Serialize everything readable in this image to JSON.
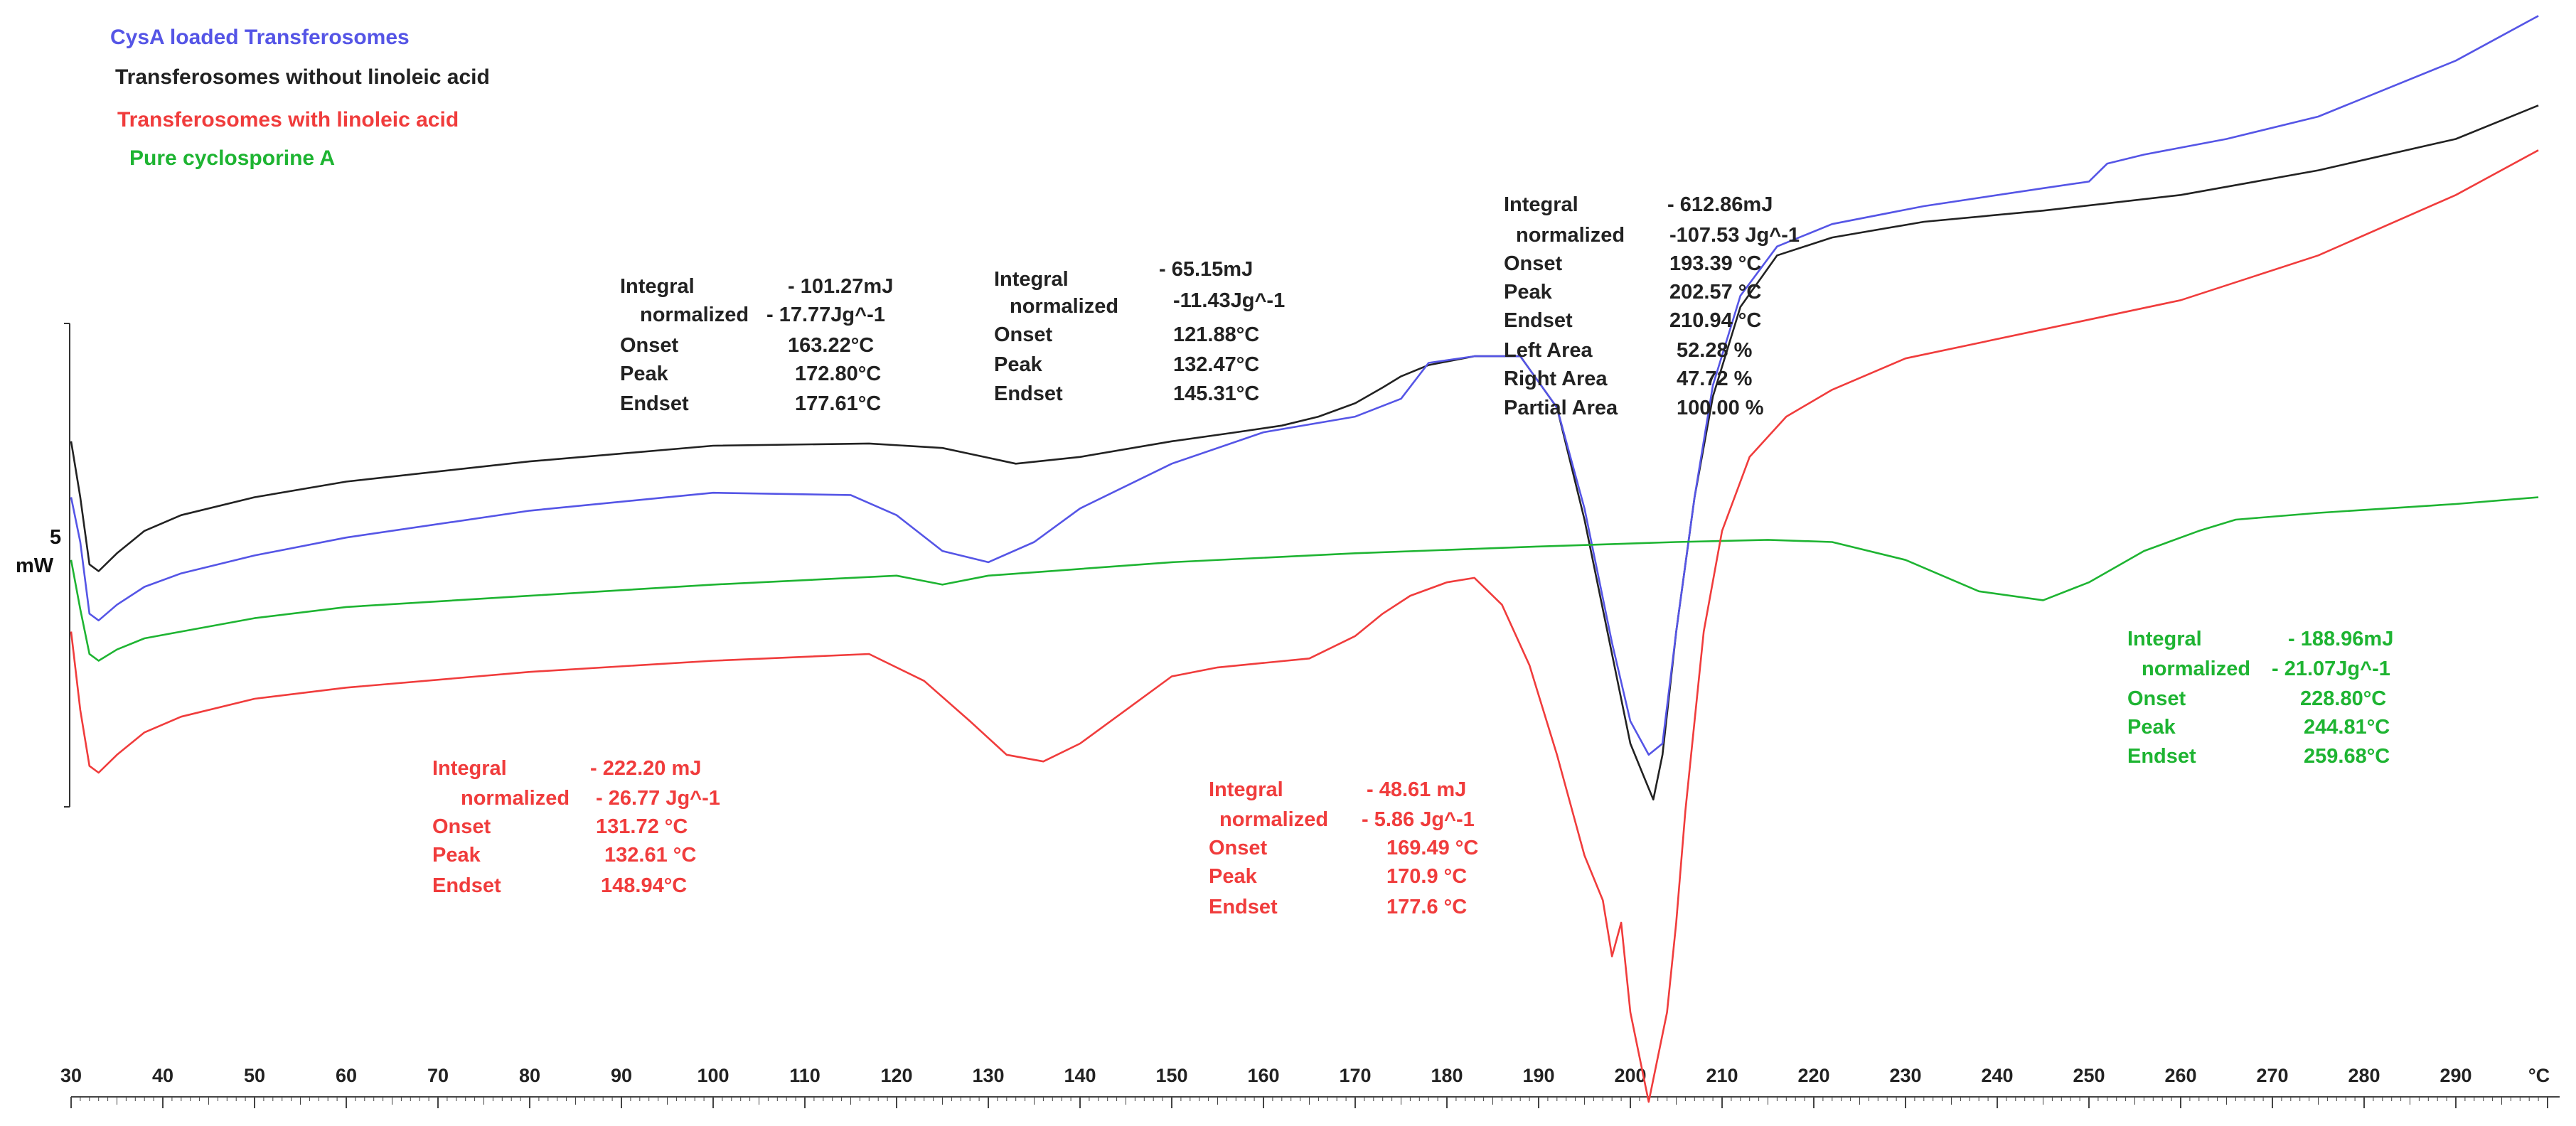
{
  "chart_data": {
    "type": "line",
    "xlabel": "°C",
    "xlim": [
      30,
      300
    ],
    "x_ticks": [
      "30",
      "40",
      "50",
      "60",
      "70",
      "80",
      "90",
      "100",
      "110",
      "120",
      "130",
      "140",
      "150",
      "160",
      "170",
      "180",
      "190",
      "200",
      "210",
      "220",
      "230",
      "240",
      "250",
      "260",
      "270",
      "280",
      "290",
      "°C"
    ],
    "y_scale_label": [
      "5",
      "mW"
    ],
    "colors": {
      "blue": "#5555e6",
      "black": "#222222",
      "red": "#f03c3c",
      "green": "#1eb432"
    },
    "legend": [
      {
        "label": "CysA loaded Transferosomes",
        "color": "#5555e6"
      },
      {
        "label": "Transferosomes without linoleic acid",
        "color": "#222222"
      },
      {
        "label": "Transferosomes with linoleic acid",
        "color": "#f03c3c"
      },
      {
        "label": "Pure cyclosporine A",
        "color": "#1eb432"
      }
    ],
    "series": [
      {
        "name": "Transferosomes without linoleic acid",
        "color": "#222222",
        "x": [
          30,
          31,
          32,
          33,
          35,
          38,
          42,
          50,
          60,
          80,
          100,
          117,
          125,
          133,
          140,
          150,
          157,
          162,
          166,
          170,
          173,
          175,
          178,
          183,
          188,
          192,
          195,
          198,
          200,
          201.5,
          202.5,
          203.5,
          205,
          207,
          209,
          212,
          216,
          222,
          232,
          245,
          260,
          275,
          290,
          299
        ],
        "y": [
          -0.5,
          -3.0,
          -6.0,
          -6.3,
          -5.5,
          -4.5,
          -3.8,
          -3.0,
          -2.3,
          -1.4,
          -0.7,
          -0.6,
          -0.8,
          -1.5,
          -1.2,
          -0.5,
          -0.1,
          0.2,
          0.6,
          1.2,
          1.9,
          2.4,
          2.9,
          3.3,
          3.3,
          1.0,
          -4.0,
          -10.0,
          -14.0,
          -15.5,
          -16.5,
          -14.5,
          -9.0,
          -3.0,
          1.5,
          5.5,
          7.8,
          8.6,
          9.3,
          9.8,
          10.5,
          11.6,
          13.0,
          14.5
        ]
      },
      {
        "name": "CysA loaded Transferosomes",
        "color": "#5555e6",
        "x": [
          30,
          31,
          32,
          33,
          35,
          38,
          42,
          50,
          60,
          80,
          100,
          115,
          120,
          125,
          130,
          135,
          140,
          150,
          160,
          170,
          175,
          178,
          183,
          188,
          192,
          195,
          198,
          200,
          202,
          203.5,
          205,
          207,
          209,
          212,
          216,
          222,
          232,
          245,
          250,
          252,
          256,
          265,
          275,
          290,
          299
        ],
        "y": [
          -3.0,
          -5.0,
          -8.2,
          -8.5,
          -7.8,
          -7.0,
          -6.4,
          -5.6,
          -4.8,
          -3.6,
          -2.8,
          -2.9,
          -3.8,
          -5.4,
          -5.9,
          -5.0,
          -3.5,
          -1.5,
          -0.1,
          0.6,
          1.4,
          3.0,
          3.3,
          3.3,
          1.0,
          -3.5,
          -9.5,
          -13.0,
          -14.5,
          -14.0,
          -9.0,
          -3.0,
          2.0,
          6.0,
          8.2,
          9.2,
          10.0,
          10.8,
          11.1,
          11.9,
          12.3,
          13.0,
          14.0,
          16.5,
          18.5
        ]
      },
      {
        "name": "Pure cyclosporine A",
        "color": "#1eb432",
        "x": [
          30,
          31,
          32,
          33,
          35,
          38,
          42,
          50,
          60,
          80,
          100,
          120,
          125,
          130,
          150,
          170,
          190,
          205,
          215,
          222,
          230,
          238,
          245,
          250,
          256,
          262,
          266,
          275,
          290,
          299
        ],
        "y": [
          -5.8,
          -8.0,
          -10.0,
          -10.3,
          -9.8,
          -9.3,
          -9.0,
          -8.4,
          -7.9,
          -7.4,
          -6.9,
          -6.5,
          -6.9,
          -6.5,
          -5.9,
          -5.5,
          -5.2,
          -5.0,
          -4.9,
          -5.0,
          -5.8,
          -7.2,
          -7.6,
          -6.8,
          -5.4,
          -4.5,
          -4.0,
          -3.7,
          -3.3,
          -3.0
        ]
      },
      {
        "name": "Transferosomes with linoleic acid",
        "color": "#f03c3c",
        "x": [
          30,
          31,
          32,
          33,
          35,
          38,
          42,
          50,
          60,
          80,
          100,
          117,
          123,
          128,
          132,
          136,
          140,
          145,
          150,
          155,
          160,
          165,
          170,
          173,
          176,
          180,
          183,
          186,
          189,
          192,
          195,
          197,
          198,
          199,
          200,
          201,
          202,
          203,
          204,
          205,
          206,
          208,
          210,
          213,
          217,
          222,
          230,
          245,
          260,
          275,
          290,
          299
        ],
        "y": [
          -9.0,
          -12.5,
          -15.0,
          -15.3,
          -14.5,
          -13.5,
          -12.8,
          -12.0,
          -11.5,
          -10.8,
          -10.3,
          -10.0,
          -11.2,
          -13.0,
          -14.5,
          -14.8,
          -14.0,
          -12.5,
          -11.0,
          -10.6,
          -10.4,
          -10.2,
          -9.2,
          -8.2,
          -7.4,
          -6.8,
          -6.6,
          -7.8,
          -10.5,
          -14.5,
          -19.0,
          -21.0,
          -23.5,
          -22.0,
          -26.0,
          -28.0,
          -30.0,
          -28.0,
          -26.0,
          -22.0,
          -17.0,
          -9.0,
          -4.5,
          -1.2,
          0.6,
          1.8,
          3.2,
          4.5,
          5.8,
          7.8,
          10.5,
          12.5
        ]
      }
    ],
    "annotations": [
      {
        "color": "#222222",
        "labels": [
          "Integral",
          "normalized",
          "Onset",
          "Peak",
          "Endset"
        ],
        "values": [
          "- 101.27mJ",
          "- 17.77Jg^-1",
          "163.22°C",
          "172.80°C",
          "177.61°C"
        ]
      },
      {
        "color": "#222222",
        "labels": [
          "Integral",
          "normalized",
          "Onset",
          "Peak",
          "Endset"
        ],
        "values": [
          "- 65.15mJ",
          "-11.43Jg^-1",
          "121.88°C",
          "132.47°C",
          "145.31°C"
        ]
      },
      {
        "color": "#222222",
        "labels": [
          "Integral",
          "normalized",
          "Onset",
          "Peak",
          "Endset",
          "Left Area",
          "Right Area",
          "Partial Area"
        ],
        "values": [
          "- 612.86mJ",
          "-107.53 Jg^-1",
          "193.39 °C",
          "202.57 °C",
          "210.94 °C",
          "52.28 %",
          "47.72 %",
          "100.00 %"
        ]
      },
      {
        "color": "#f03c3c",
        "labels": [
          "Integral",
          "normalized",
          "Onset",
          "Peak",
          "Endset"
        ],
        "values": [
          "- 222.20 mJ",
          "- 26.77 Jg^-1",
          "131.72 °C",
          "132.61 °C",
          "148.94°C"
        ]
      },
      {
        "color": "#f03c3c",
        "labels": [
          "Integral",
          "normalized",
          "Onset",
          "Peak",
          "Endset"
        ],
        "values": [
          "- 48.61 mJ",
          "- 5.86 Jg^-1",
          "169.49 °C",
          "170.9 °C",
          "177.6 °C"
        ]
      },
      {
        "color": "#1eb432",
        "labels": [
          "Integral",
          "normalized",
          "Onset",
          "Peak",
          "Endset"
        ],
        "values": [
          "- 188.96mJ",
          "- 21.07Jg^-1",
          "228.80°C",
          "244.81°C",
          "259.68°C"
        ]
      }
    ]
  }
}
